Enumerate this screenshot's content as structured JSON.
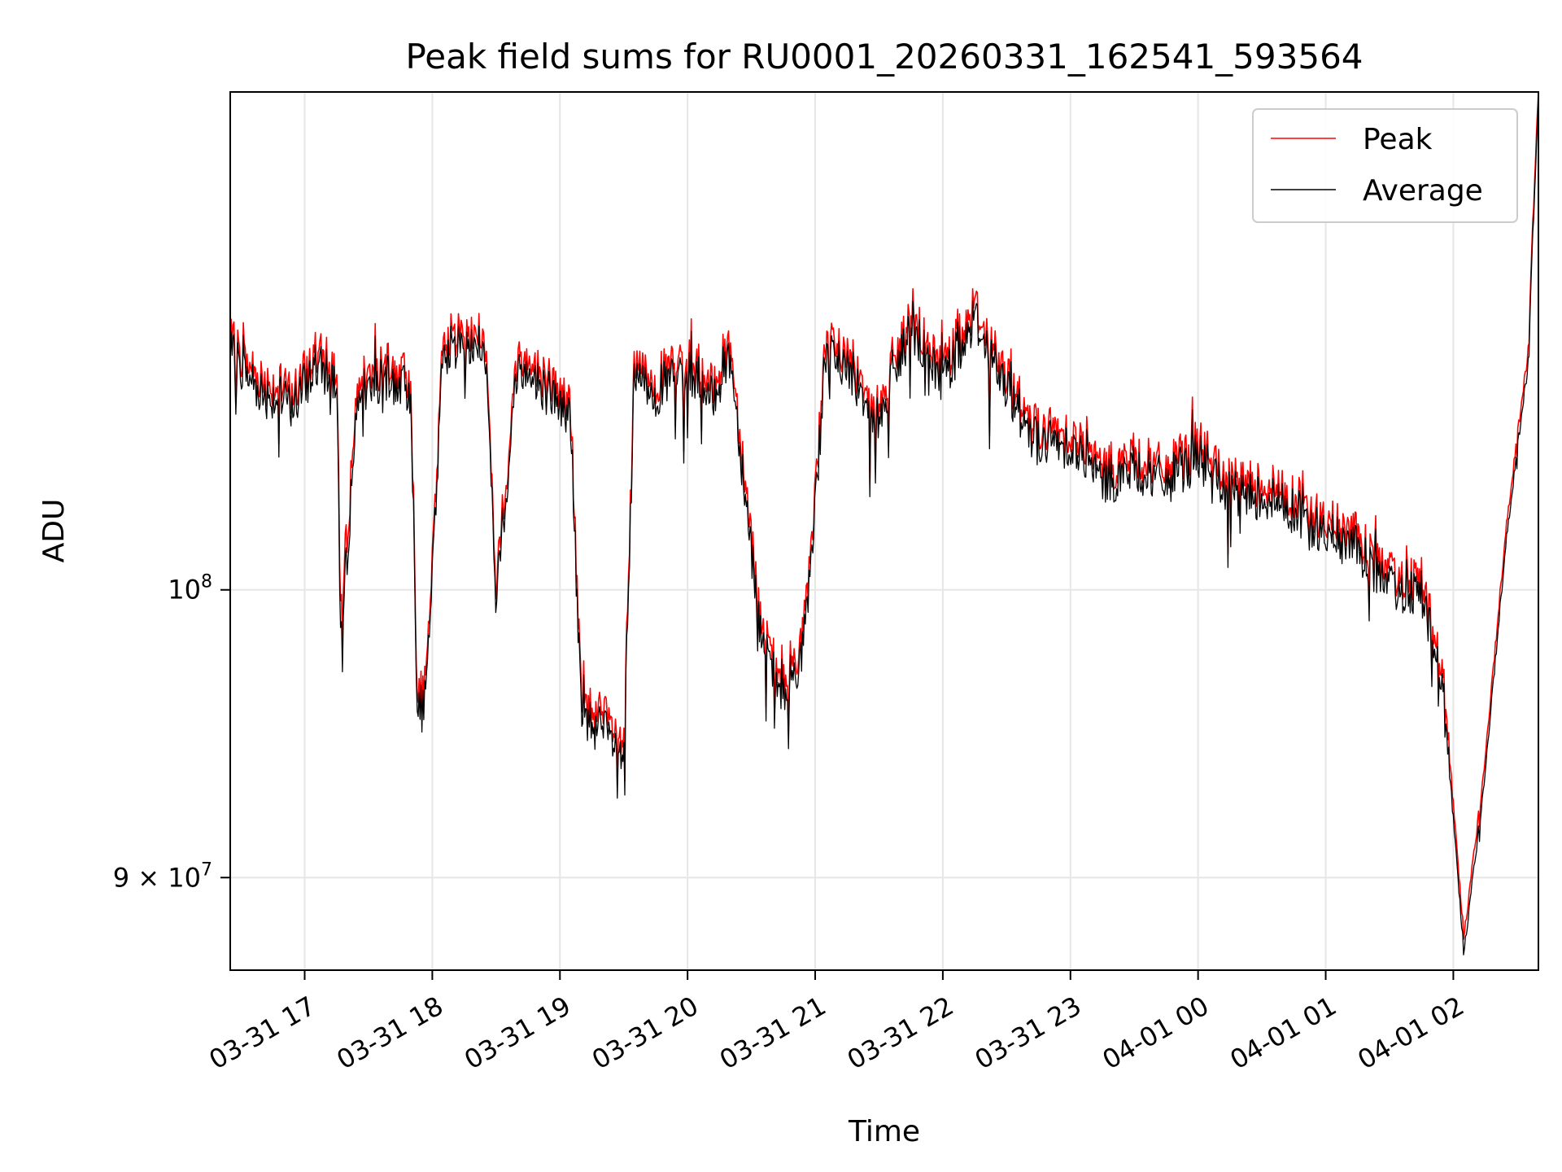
{
  "chart_data": {
    "type": "line",
    "title": "Peak field sums for RU0001_20260331_162541_593564",
    "xlabel": "Time",
    "ylabel": "ADU",
    "x_range": [
      "2026-03-31T16:25",
      "2026-04-01T02:40"
    ],
    "y_scale": "log",
    "ylim": [
      87000000,
      120000000
    ],
    "grid": true,
    "legend_position": "top-right",
    "x_ticks": [
      {
        "time": "2026-03-31T17:00",
        "label": "03-31 17"
      },
      {
        "time": "2026-03-31T18:00",
        "label": "03-31 18"
      },
      {
        "time": "2026-03-31T19:00",
        "label": "03-31 19"
      },
      {
        "time": "2026-03-31T20:00",
        "label": "03-31 20"
      },
      {
        "time": "2026-03-31T21:00",
        "label": "03-31 21"
      },
      {
        "time": "2026-03-31T22:00",
        "label": "03-31 22"
      },
      {
        "time": "2026-03-31T23:00",
        "label": "03-31 23"
      },
      {
        "time": "2026-04-01T00:00",
        "label": "04-01 00"
      },
      {
        "time": "2026-04-01T01:00",
        "label": "04-01 01"
      },
      {
        "time": "2026-04-01T02:00",
        "label": "04-01 02"
      }
    ],
    "y_ticks": [
      {
        "value": 100000000,
        "base": "10",
        "exp": "8"
      },
      {
        "value": 90000000,
        "mantissa": "9",
        "base": "10",
        "exp": "7"
      }
    ],
    "series": [
      {
        "name": "Peak",
        "color": "#ff0000",
        "x": [
          "2026-03-31T16:25",
          "2026-03-31T16:40",
          "2026-03-31T16:55",
          "2026-03-31T17:05",
          "2026-03-31T17:15",
          "2026-03-31T17:17",
          "2026-03-31T17:25",
          "2026-03-31T17:40",
          "2026-03-31T17:50",
          "2026-03-31T17:53",
          "2026-03-31T17:57",
          "2026-03-31T18:05",
          "2026-03-31T18:15",
          "2026-03-31T18:25",
          "2026-03-31T18:30",
          "2026-03-31T18:40",
          "2026-03-31T18:55",
          "2026-03-31T19:05",
          "2026-03-31T19:10",
          "2026-03-31T19:20",
          "2026-03-31T19:30",
          "2026-03-31T19:35",
          "2026-03-31T19:45",
          "2026-03-31T20:00",
          "2026-03-31T20:10",
          "2026-03-31T20:20",
          "2026-03-31T20:35",
          "2026-03-31T20:45",
          "2026-03-31T20:55",
          "2026-03-31T21:05",
          "2026-03-31T21:15",
          "2026-03-31T21:30",
          "2026-03-31T21:45",
          "2026-03-31T22:00",
          "2026-03-31T22:15",
          "2026-03-31T22:30",
          "2026-03-31T22:45",
          "2026-03-31T23:00",
          "2026-03-31T23:15",
          "2026-03-31T23:30",
          "2026-03-31T23:45",
          "2026-04-01T00:00",
          "2026-04-01T00:15",
          "2026-04-01T00:30",
          "2026-04-01T00:45",
          "2026-04-01T01:00",
          "2026-04-01T01:15",
          "2026-04-01T01:30",
          "2026-04-01T01:45",
          "2026-04-01T01:55",
          "2026-04-01T02:05",
          "2026-04-01T02:15",
          "2026-04-01T02:25",
          "2026-04-01T02:35",
          "2026-04-01T02:40"
        ],
        "y": [
          109500000,
          108000000,
          107500000,
          109000000,
          108500000,
          99000000,
          108000000,
          108500000,
          108000000,
          96000000,
          96500000,
          109500000,
          110000000,
          109500000,
          100000000,
          109000000,
          108000000,
          107000000,
          96000000,
          95500000,
          94500000,
          108500000,
          108000000,
          109000000,
          107500000,
          109500000,
          98500000,
          96500000,
          98500000,
          109500000,
          109000000,
          107000000,
          110500000,
          108500000,
          111000000,
          108000000,
          106000000,
          106000000,
          104500000,
          105000000,
          104500000,
          105500000,
          104000000,
          104000000,
          103500000,
          102500000,
          102000000,
          100500000,
          100500000,
          97000000,
          88000000,
          94000000,
          102500000,
          109000000,
          120500000
        ]
      },
      {
        "name": "Average",
        "color": "#000000",
        "x": [
          "2026-03-31T16:25",
          "2026-03-31T16:40",
          "2026-03-31T16:55",
          "2026-03-31T17:05",
          "2026-03-31T17:15",
          "2026-03-31T17:17",
          "2026-03-31T17:25",
          "2026-03-31T17:40",
          "2026-03-31T17:50",
          "2026-03-31T17:53",
          "2026-03-31T17:57",
          "2026-03-31T18:05",
          "2026-03-31T18:15",
          "2026-03-31T18:25",
          "2026-03-31T18:30",
          "2026-03-31T18:40",
          "2026-03-31T18:55",
          "2026-03-31T19:05",
          "2026-03-31T19:10",
          "2026-03-31T19:20",
          "2026-03-31T19:30",
          "2026-03-31T19:35",
          "2026-03-31T19:45",
          "2026-03-31T20:00",
          "2026-03-31T20:10",
          "2026-03-31T20:20",
          "2026-03-31T20:35",
          "2026-03-31T20:45",
          "2026-03-31T20:55",
          "2026-03-31T21:05",
          "2026-03-31T21:15",
          "2026-03-31T21:30",
          "2026-03-31T21:45",
          "2026-03-31T22:00",
          "2026-03-31T22:15",
          "2026-03-31T22:30",
          "2026-03-31T22:45",
          "2026-03-31T23:00",
          "2026-03-31T23:15",
          "2026-03-31T23:30",
          "2026-03-31T23:45",
          "2026-04-01T00:00",
          "2026-04-01T00:15",
          "2026-04-01T00:30",
          "2026-04-01T00:45",
          "2026-04-01T01:00",
          "2026-04-01T01:15",
          "2026-04-01T01:30",
          "2026-04-01T01:45",
          "2026-04-01T01:55",
          "2026-04-01T02:05",
          "2026-04-01T02:15",
          "2026-04-01T02:25",
          "2026-04-01T02:35",
          "2026-04-01T02:40"
        ],
        "y": [
          109000000,
          107500000,
          107000000,
          108500000,
          108000000,
          98000000,
          107500000,
          108000000,
          107500000,
          95500000,
          96000000,
          109000000,
          109500000,
          109000000,
          99500000,
          108500000,
          107500000,
          106500000,
          95500000,
          95000000,
          94000000,
          108000000,
          107500000,
          108500000,
          107000000,
          109000000,
          98000000,
          96000000,
          98000000,
          109000000,
          108500000,
          106500000,
          110000000,
          108000000,
          110500000,
          107500000,
          105500000,
          105500000,
          104000000,
          104500000,
          104000000,
          105000000,
          103500000,
          103500000,
          103000000,
          102000000,
          101500000,
          100000000,
          100000000,
          96500000,
          87500000,
          93500000,
          102000000,
          108500000,
          120000000
        ]
      }
    ]
  }
}
